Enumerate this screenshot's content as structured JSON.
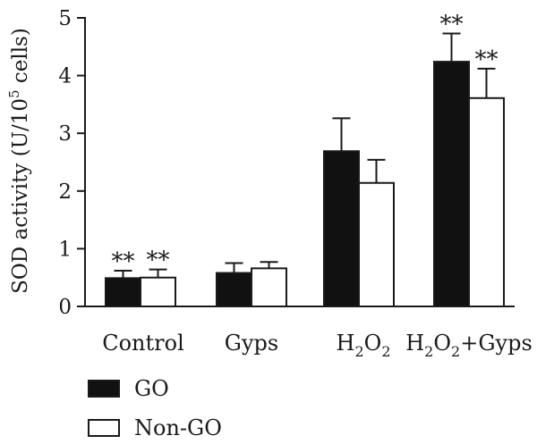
{
  "chart_data": {
    "type": "bar",
    "ylabel_main": "SOD activity (U/10",
    "ylabel_sup": "5",
    "ylabel_tail": " cells)",
    "ylim": [
      0,
      5
    ],
    "yticks": [
      "0",
      "1",
      "2",
      "3",
      "4",
      "5"
    ],
    "categories": [
      {
        "main": "Control",
        "parts": []
      },
      {
        "main": "Gyps",
        "parts": []
      },
      {
        "main": "",
        "parts": [
          [
            "H",
            ""
          ],
          [
            "2",
            "sub"
          ],
          [
            "O",
            ""
          ],
          [
            "2",
            "sub"
          ]
        ]
      },
      {
        "main": "",
        "parts": [
          [
            "H",
            ""
          ],
          [
            "2",
            "sub"
          ],
          [
            "O",
            ""
          ],
          [
            "2",
            "sub"
          ],
          [
            "+Gyps",
            ""
          ]
        ]
      }
    ],
    "series": [
      {
        "name": "GO",
        "color": "#111111",
        "values": [
          0.49,
          0.58,
          2.69,
          4.24
        ],
        "errors": [
          0.13,
          0.17,
          0.57,
          0.49
        ],
        "annotations": [
          "**",
          "",
          "",
          "**"
        ]
      },
      {
        "name": "Non-GO",
        "color": "#ffffff",
        "values": [
          0.5,
          0.66,
          2.14,
          3.61
        ],
        "errors": [
          0.14,
          0.11,
          0.4,
          0.51
        ],
        "annotations": [
          "**",
          "",
          "",
          "**"
        ]
      }
    ],
    "legend_position": "bottom-left",
    "grid": false
  }
}
